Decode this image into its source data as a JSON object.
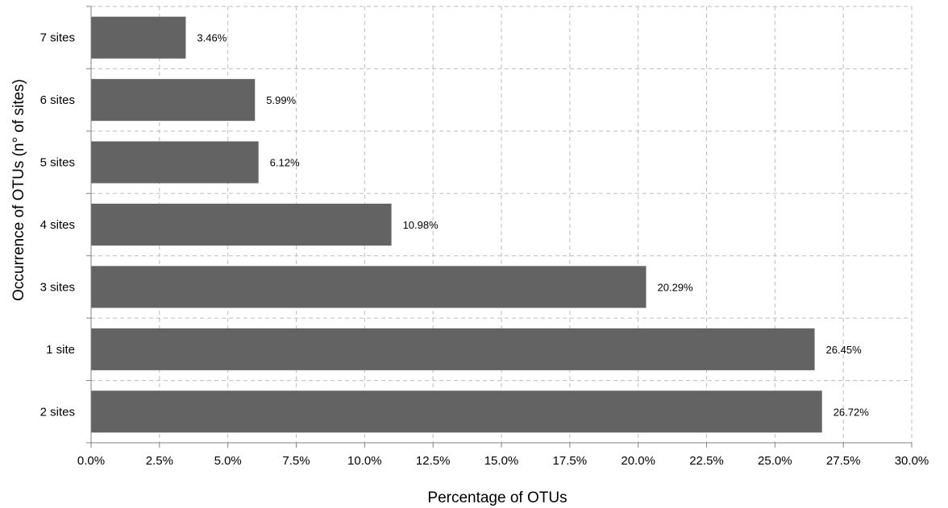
{
  "chart_data": {
    "type": "bar",
    "orientation": "horizontal",
    "categories": [
      "7 sites",
      "6 sites",
      "5 sites",
      "4 sites",
      "3 sites",
      "1 site",
      "2 sites"
    ],
    "values": [
      3.46,
      5.99,
      6.12,
      10.98,
      20.29,
      26.45,
      26.72
    ],
    "data_labels": [
      "3.46%",
      "5.99%",
      "6.12%",
      "10.98%",
      "20.29%",
      "26.45%",
      "26.72%"
    ],
    "xlabel": "Percentage of OTUs",
    "ylabel": "Occurrence of OTUs (n° of sites)",
    "xlim": [
      0,
      30
    ],
    "xticks": [
      0,
      2.5,
      5,
      7.5,
      10,
      12.5,
      15,
      17.5,
      20,
      22.5,
      25,
      27.5,
      30
    ],
    "xtick_labels": [
      "0.0%",
      "2.5%",
      "5.0%",
      "7.5%",
      "10.0%",
      "12.5%",
      "15.0%",
      "17.5%",
      "20.0%",
      "22.5%",
      "25.0%",
      "27.5%",
      "30.0%"
    ],
    "grid": true,
    "bar_color": "#636363",
    "legend": "none"
  }
}
